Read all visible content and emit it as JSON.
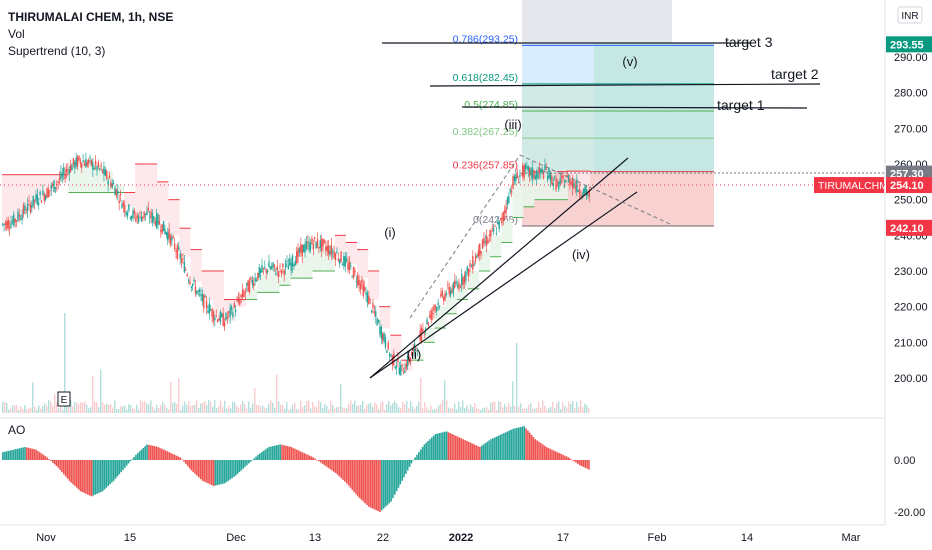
{
  "header": {
    "symbol_line": "THIRUMALAI CHEM, 1h, NSE",
    "indicator_vol": "Vol",
    "indicator_supertrend": "Supertrend (10, 3)",
    "indicator_ao": "AO",
    "currency": "INR",
    "event_marker": "E"
  },
  "chart_data": {
    "type": "line",
    "symbol": "THIRUMALCHM",
    "price_axis": {
      "ticks": [
        200.0,
        210.0,
        220.0,
        230.0,
        240.0,
        250.0,
        260.0,
        270.0,
        280.0,
        290.0
      ],
      "range": [
        190,
        310
      ]
    },
    "ao_axis": {
      "ticks": [
        0.0,
        -20.0
      ]
    },
    "time_labels": [
      "Nov",
      "15",
      "Dec",
      "13",
      "22",
      "2022",
      "17",
      "Feb",
      "14",
      "Mar"
    ],
    "price_tags": [
      {
        "label": "293.55",
        "value": 293.55,
        "color": "#089981"
      },
      {
        "label": "257.30",
        "value": 257.3,
        "color": "#787b86"
      },
      {
        "label": "254.10",
        "value": 254.1,
        "color": "#f23645",
        "name": "TIRUMALCHM"
      },
      {
        "label": "242.10",
        "value": 242.1,
        "color": "#f23645"
      }
    ],
    "fib_levels": [
      {
        "label": "0.786(293.25)",
        "value": 293.25,
        "color": "#2962ff"
      },
      {
        "label": "0.618(282.45)",
        "value": 282.45,
        "color": "#089981"
      },
      {
        "label": "0.5(274.85)",
        "value": 274.85,
        "color": "#4caf50"
      },
      {
        "label": "0.382(267.25)",
        "value": 267.25,
        "color": "#81c784"
      },
      {
        "label": "0.236(257.85)",
        "value": 257.85,
        "color": "#f23645"
      },
      {
        "label": "0(242.65)",
        "value": 242.65,
        "color": "#787b86"
      }
    ],
    "targets": [
      {
        "label": "target 3",
        "value": 293.25
      },
      {
        "label": "target 2",
        "value": 282.45
      },
      {
        "label": "target 1",
        "value": 274.85
      }
    ],
    "wave_labels": [
      "(i)",
      "(ii)",
      "(iii)",
      "(iv)",
      "(v)"
    ],
    "price_series": [
      243,
      244,
      247,
      250,
      252,
      255,
      259,
      261,
      260,
      258,
      254,
      248,
      245,
      246,
      244,
      240,
      234,
      227,
      222,
      218,
      216,
      220,
      225,
      229,
      231,
      230,
      232,
      236,
      238,
      237,
      235,
      232,
      228,
      222,
      214,
      206,
      202,
      207,
      214,
      220,
      224,
      226,
      230,
      236,
      240,
      244,
      255,
      258,
      257,
      258,
      254,
      256,
      253,
      251
    ],
    "supertrend_series": [
      257,
      257,
      257,
      257,
      257,
      257,
      252,
      252,
      252,
      252,
      252,
      252,
      260,
      260,
      255,
      250,
      242,
      236,
      230,
      230,
      222,
      222,
      222,
      224,
      224,
      226,
      228,
      228,
      230,
      230,
      240,
      238,
      236,
      230,
      220,
      212,
      205,
      205,
      210,
      214,
      218,
      222,
      225,
      230,
      234,
      238,
      245,
      248,
      250,
      250,
      250,
      258,
      258,
      256
    ],
    "ao_series": [
      3,
      4,
      5,
      4,
      1,
      -3,
      -8,
      -12,
      -14,
      -12,
      -8,
      -3,
      2,
      6,
      5,
      3,
      1,
      -4,
      -8,
      -10,
      -9,
      -6,
      -2,
      2,
      5,
      6,
      5,
      3,
      1,
      -2,
      -5,
      -9,
      -14,
      -18,
      -20,
      -16,
      -8,
      0,
      6,
      10,
      11,
      9,
      7,
      5,
      8,
      10,
      12,
      13,
      8,
      5,
      3,
      1,
      -2,
      -4
    ]
  }
}
